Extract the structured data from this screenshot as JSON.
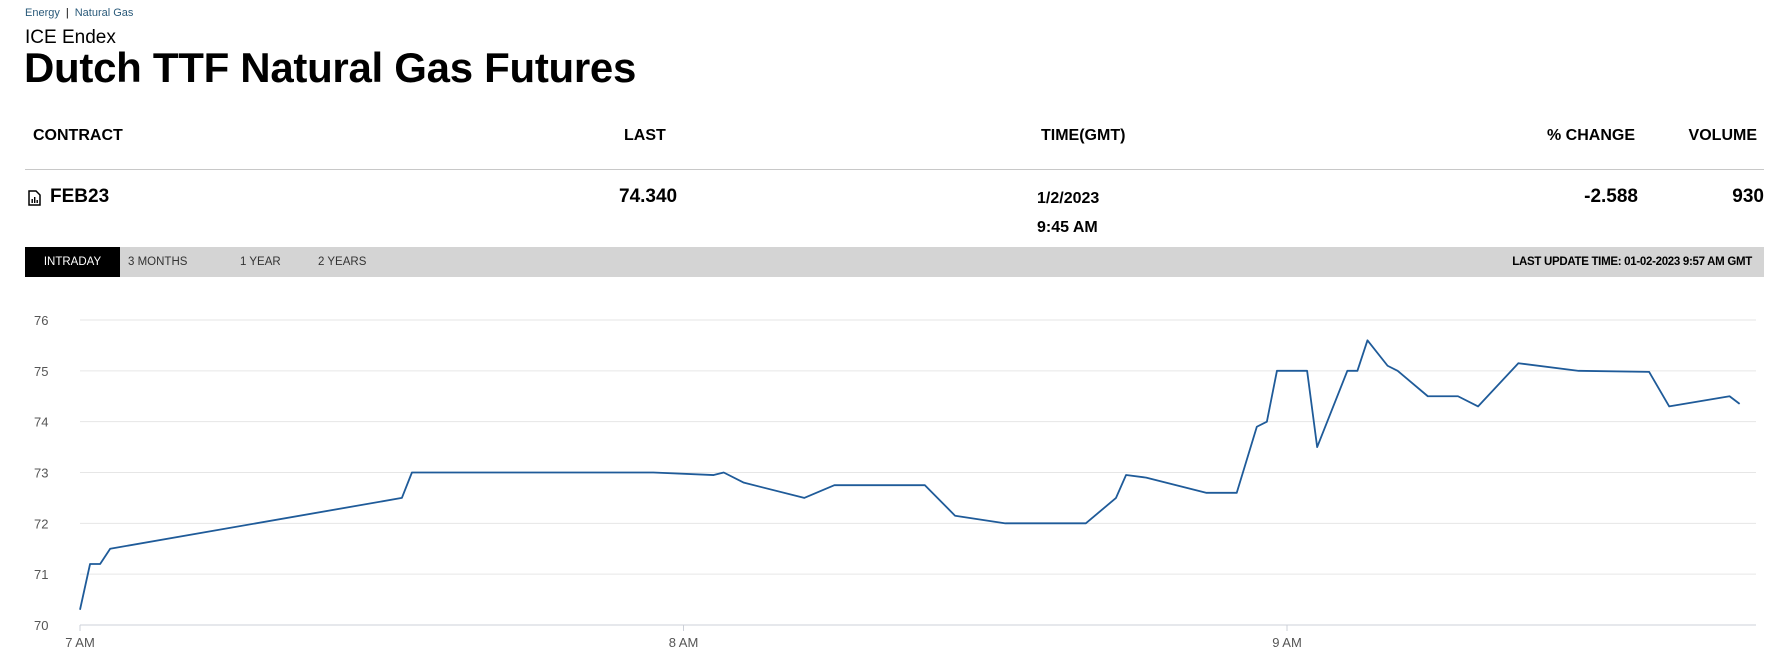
{
  "breadcrumb": [
    "Energy",
    "Natural Gas"
  ],
  "exchange": "ICE Endex",
  "title": "Dutch TTF Natural Gas Futures",
  "table": {
    "headers": {
      "contract": "CONTRACT",
      "last": "LAST",
      "time": "TIME(GMT)",
      "pct_change": "% CHANGE",
      "volume": "VOLUME"
    },
    "row": {
      "contract": "FEB23",
      "contract_icon": "chart-document-icon",
      "last": "74.340",
      "date": "1/2/2023",
      "time": "9:45 AM",
      "pct_change": "-2.588",
      "volume": "930"
    }
  },
  "tabs": [
    {
      "label": "INTRADAY",
      "active": true
    },
    {
      "label": "3 MONTHS"
    },
    {
      "label": "1 YEAR"
    },
    {
      "label": "2 YEARS"
    }
  ],
  "last_update": "LAST UPDATE TIME: 01-02-2023 9:57 AM GMT",
  "colors": {
    "line": "#1f5b99",
    "grid": "#e6e6e6"
  },
  "chart_data": {
    "type": "line",
    "x_ticks": [
      "7 AM",
      "8 AM",
      "9 AM"
    ],
    "y_ticks": [
      70,
      71,
      72,
      73,
      74,
      75,
      76
    ],
    "ylim": [
      70,
      76
    ],
    "xlim": [
      "07:00",
      "09:51"
    ],
    "grid": "horizontal",
    "series": [
      {
        "points": [
          [
            "07:00",
            70.3
          ],
          [
            "07:01",
            71.2
          ],
          [
            "07:02",
            71.2
          ],
          [
            "07:03",
            71.5
          ],
          [
            "07:32",
            72.5
          ],
          [
            "07:33",
            73.0
          ],
          [
            "07:35",
            73.0
          ],
          [
            "07:57",
            73.0
          ],
          [
            "08:03",
            72.95
          ],
          [
            "08:04",
            73.0
          ],
          [
            "08:06",
            72.8
          ],
          [
            "08:12",
            72.5
          ],
          [
            "08:15",
            72.75
          ],
          [
            "08:24",
            72.75
          ],
          [
            "08:27",
            72.15
          ],
          [
            "08:32",
            72.0
          ],
          [
            "08:40",
            72.0
          ],
          [
            "08:43",
            72.5
          ],
          [
            "08:44",
            72.95
          ],
          [
            "08:46",
            72.9
          ],
          [
            "08:52",
            72.6
          ],
          [
            "08:55",
            72.6
          ],
          [
            "08:57",
            73.9
          ],
          [
            "08:58",
            74.0
          ],
          [
            "08:59",
            75.0
          ],
          [
            "09:02",
            75.0
          ],
          [
            "09:03",
            73.5
          ],
          [
            "09:06",
            75.0
          ],
          [
            "09:07",
            75.0
          ],
          [
            "09:08",
            75.6
          ],
          [
            "09:10",
            75.1
          ],
          [
            "09:11",
            75.0
          ],
          [
            "09:14",
            74.5
          ],
          [
            "09:17",
            74.5
          ],
          [
            "09:19",
            74.3
          ],
          [
            "09:23",
            75.15
          ],
          [
            "09:29",
            75.0
          ],
          [
            "09:36",
            74.98
          ],
          [
            "09:38",
            74.3
          ],
          [
            "09:44",
            74.5
          ],
          [
            "09:45",
            74.35
          ]
        ]
      }
    ]
  }
}
